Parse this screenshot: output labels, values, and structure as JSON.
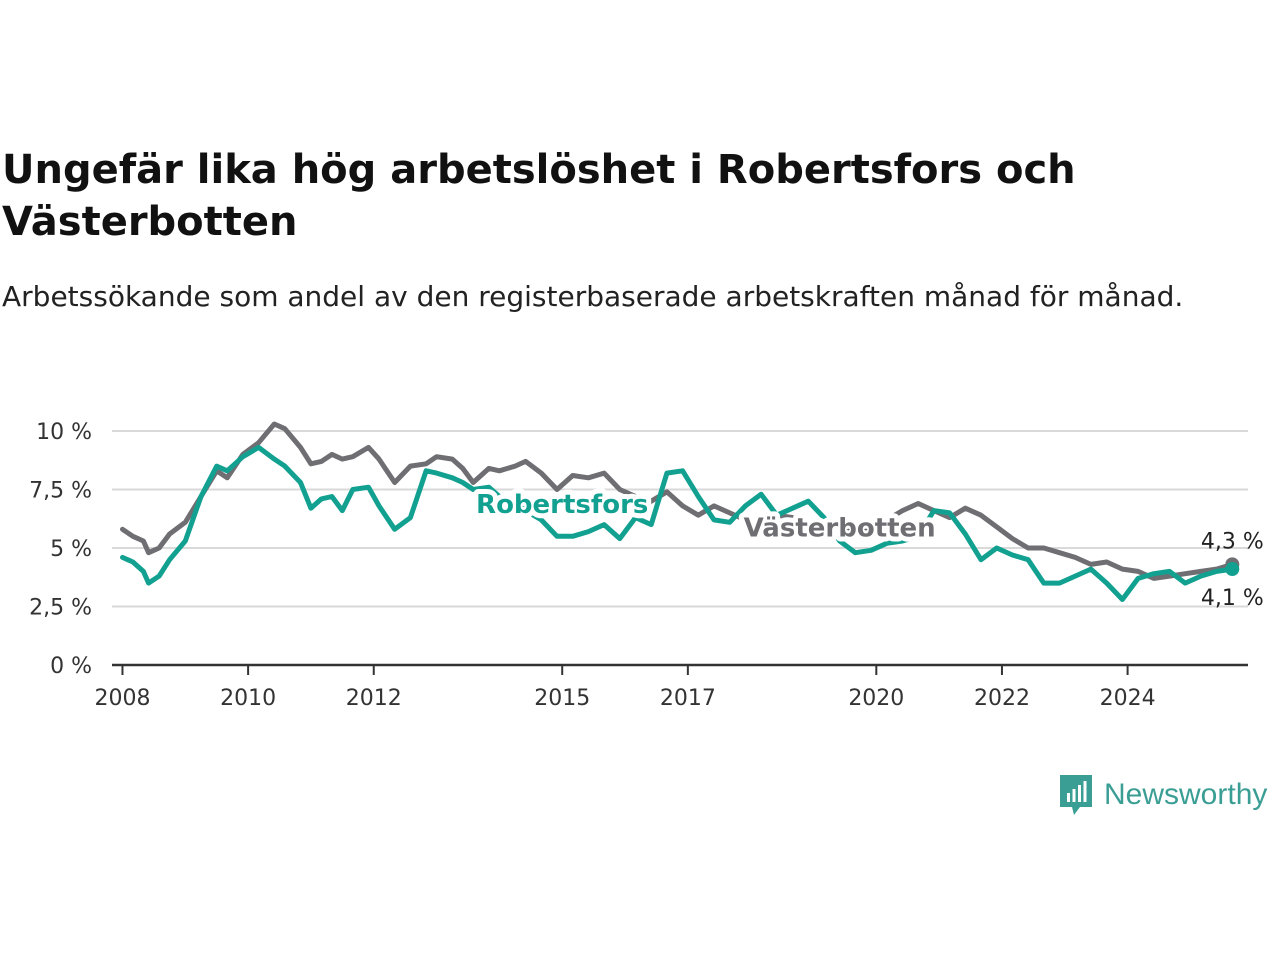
{
  "header": {
    "title": "Ungefär lika hög arbetslöshet i Robertsfors och Västerbotten",
    "subtitle": "Arbetssökande som andel av den registerbaserade arbetskraften månad för månad."
  },
  "brand": {
    "name": "Newsworthy",
    "icon": "newsworthy-logo-icon",
    "color": "#3a9e94"
  },
  "chart_data": {
    "type": "line",
    "title": "Ungefär lika hög arbetslöshet i Robertsfors och Västerbotten",
    "subtitle": "Arbetssökande som andel av den registerbaserade arbetskraften månad för månad.",
    "xlabel": "",
    "ylabel": "",
    "ylim": [
      0,
      10
    ],
    "xlim": [
      "2007-11",
      "2025-12"
    ],
    "y_ticks": [
      0,
      2.5,
      5,
      7.5,
      10
    ],
    "y_tick_labels": [
      "0 %",
      "2,5 %",
      "5 %",
      "7,5 %",
      "10 %"
    ],
    "x_ticks": [
      "2008-01",
      "2010-01",
      "2012-01",
      "2015-01",
      "2017-01",
      "2020-01",
      "2022-01",
      "2024-01"
    ],
    "x_tick_labels": [
      "2008",
      "2010",
      "2012",
      "2015",
      "2017",
      "2020",
      "2022",
      "2024"
    ],
    "grid": "horizontal",
    "legend": "inline labels",
    "series": [
      {
        "name": "Västerbotten",
        "color": "#6e6e73",
        "end_label": "4,3 %",
        "points": [
          [
            "2008-01",
            5.8
          ],
          [
            "2008-03",
            5.5
          ],
          [
            "2008-05",
            5.3
          ],
          [
            "2008-06",
            4.8
          ],
          [
            "2008-08",
            5.0
          ],
          [
            "2008-10",
            5.6
          ],
          [
            "2009-01",
            6.1
          ],
          [
            "2009-04",
            7.2
          ],
          [
            "2009-07",
            8.3
          ],
          [
            "2009-09",
            8.0
          ],
          [
            "2009-12",
            9.0
          ],
          [
            "2010-03",
            9.5
          ],
          [
            "2010-06",
            10.3
          ],
          [
            "2010-08",
            10.1
          ],
          [
            "2010-11",
            9.3
          ],
          [
            "2011-01",
            8.6
          ],
          [
            "2011-03",
            8.7
          ],
          [
            "2011-05",
            9.0
          ],
          [
            "2011-07",
            8.8
          ],
          [
            "2011-09",
            8.9
          ],
          [
            "2011-12",
            9.3
          ],
          [
            "2012-02",
            8.8
          ],
          [
            "2012-05",
            7.8
          ],
          [
            "2012-08",
            8.5
          ],
          [
            "2012-11",
            8.6
          ],
          [
            "2013-01",
            8.9
          ],
          [
            "2013-04",
            8.8
          ],
          [
            "2013-06",
            8.4
          ],
          [
            "2013-08",
            7.8
          ],
          [
            "2013-11",
            8.4
          ],
          [
            "2014-01",
            8.3
          ],
          [
            "2014-04",
            8.5
          ],
          [
            "2014-06",
            8.7
          ],
          [
            "2014-09",
            8.2
          ],
          [
            "2014-12",
            7.5
          ],
          [
            "2015-03",
            8.1
          ],
          [
            "2015-06",
            8.0
          ],
          [
            "2015-09",
            8.2
          ],
          [
            "2015-12",
            7.5
          ],
          [
            "2016-03",
            7.2
          ],
          [
            "2016-06",
            7.0
          ],
          [
            "2016-09",
            7.4
          ],
          [
            "2016-12",
            6.8
          ],
          [
            "2017-03",
            6.4
          ],
          [
            "2017-06",
            6.8
          ],
          [
            "2017-09",
            6.5
          ],
          [
            "2017-12",
            6.2
          ],
          [
            "2018-03",
            5.7
          ],
          [
            "2018-06",
            6.4
          ],
          [
            "2018-09",
            6.3
          ],
          [
            "2018-12",
            5.8
          ],
          [
            "2019-03",
            5.6
          ],
          [
            "2019-06",
            5.9
          ],
          [
            "2019-09",
            5.6
          ],
          [
            "2019-12",
            5.8
          ],
          [
            "2020-03",
            6.2
          ],
          [
            "2020-06",
            6.6
          ],
          [
            "2020-09",
            6.9
          ],
          [
            "2020-12",
            6.6
          ],
          [
            "2021-03",
            6.3
          ],
          [
            "2021-06",
            6.7
          ],
          [
            "2021-09",
            6.4
          ],
          [
            "2021-12",
            5.9
          ],
          [
            "2022-03",
            5.4
          ],
          [
            "2022-06",
            5.0
          ],
          [
            "2022-09",
            5.0
          ],
          [
            "2022-12",
            4.8
          ],
          [
            "2023-03",
            4.6
          ],
          [
            "2023-06",
            4.3
          ],
          [
            "2023-09",
            4.4
          ],
          [
            "2023-12",
            4.1
          ],
          [
            "2024-03",
            4.0
          ],
          [
            "2024-06",
            3.7
          ],
          [
            "2024-09",
            3.8
          ],
          [
            "2024-12",
            3.9
          ],
          [
            "2025-03",
            4.0
          ],
          [
            "2025-06",
            4.1
          ],
          [
            "2025-09",
            4.3
          ]
        ]
      },
      {
        "name": "Robertsfors",
        "color": "#12a190",
        "end_label": "4,1 %",
        "points": [
          [
            "2008-01",
            4.6
          ],
          [
            "2008-03",
            4.4
          ],
          [
            "2008-05",
            4.0
          ],
          [
            "2008-06",
            3.5
          ],
          [
            "2008-08",
            3.8
          ],
          [
            "2008-10",
            4.5
          ],
          [
            "2009-01",
            5.3
          ],
          [
            "2009-04",
            7.2
          ],
          [
            "2009-07",
            8.5
          ],
          [
            "2009-09",
            8.3
          ],
          [
            "2009-12",
            8.9
          ],
          [
            "2010-03",
            9.3
          ],
          [
            "2010-06",
            8.8
          ],
          [
            "2010-08",
            8.5
          ],
          [
            "2010-11",
            7.8
          ],
          [
            "2011-01",
            6.7
          ],
          [
            "2011-03",
            7.1
          ],
          [
            "2011-05",
            7.2
          ],
          [
            "2011-07",
            6.6
          ],
          [
            "2011-09",
            7.5
          ],
          [
            "2011-12",
            7.6
          ],
          [
            "2012-02",
            6.8
          ],
          [
            "2012-05",
            5.8
          ],
          [
            "2012-08",
            6.3
          ],
          [
            "2012-11",
            8.3
          ],
          [
            "2013-01",
            8.2
          ],
          [
            "2013-04",
            8.0
          ],
          [
            "2013-06",
            7.8
          ],
          [
            "2013-08",
            7.5
          ],
          [
            "2013-11",
            7.6
          ],
          [
            "2014-01",
            7.2
          ],
          [
            "2014-04",
            6.9
          ],
          [
            "2014-06",
            6.6
          ],
          [
            "2014-09",
            6.2
          ],
          [
            "2014-12",
            5.5
          ],
          [
            "2015-03",
            5.5
          ],
          [
            "2015-06",
            5.7
          ],
          [
            "2015-09",
            6.0
          ],
          [
            "2015-12",
            5.4
          ],
          [
            "2016-03",
            6.3
          ],
          [
            "2016-06",
            6.0
          ],
          [
            "2016-09",
            8.2
          ],
          [
            "2016-12",
            8.3
          ],
          [
            "2017-03",
            7.2
          ],
          [
            "2017-06",
            6.2
          ],
          [
            "2017-09",
            6.1
          ],
          [
            "2017-12",
            6.8
          ],
          [
            "2018-03",
            7.3
          ],
          [
            "2018-06",
            6.4
          ],
          [
            "2018-09",
            6.7
          ],
          [
            "2018-12",
            7.0
          ],
          [
            "2019-03",
            6.3
          ],
          [
            "2019-06",
            5.3
          ],
          [
            "2019-09",
            4.8
          ],
          [
            "2019-12",
            4.9
          ],
          [
            "2020-03",
            5.2
          ],
          [
            "2020-06",
            5.3
          ],
          [
            "2020-09",
            5.5
          ],
          [
            "2020-12",
            6.6
          ],
          [
            "2021-03",
            6.5
          ],
          [
            "2021-06",
            5.6
          ],
          [
            "2021-09",
            4.5
          ],
          [
            "2021-12",
            5.0
          ],
          [
            "2022-03",
            4.7
          ],
          [
            "2022-06",
            4.5
          ],
          [
            "2022-09",
            3.5
          ],
          [
            "2022-12",
            3.5
          ],
          [
            "2023-03",
            3.8
          ],
          [
            "2023-06",
            4.1
          ],
          [
            "2023-09",
            3.5
          ],
          [
            "2023-12",
            2.8
          ],
          [
            "2024-03",
            3.7
          ],
          [
            "2024-06",
            3.9
          ],
          [
            "2024-09",
            4.0
          ],
          [
            "2024-12",
            3.5
          ],
          [
            "2025-03",
            3.8
          ],
          [
            "2025-06",
            4.0
          ],
          [
            "2025-09",
            4.1
          ]
        ]
      }
    ],
    "annotations": [
      {
        "text": "Robertsfors",
        "series": "Robertsfors",
        "x": "2015-01",
        "y": 6.5
      },
      {
        "text": "Västerbotten",
        "series": "Västerbotten",
        "x": "2019-06",
        "y": 5.5
      }
    ]
  }
}
